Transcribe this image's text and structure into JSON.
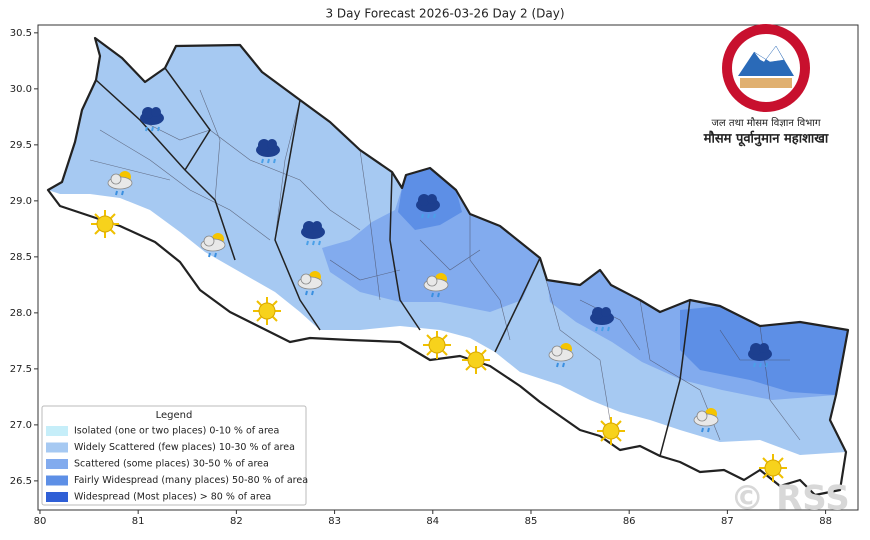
{
  "chart_data": {
    "type": "map",
    "title": "3 Day Forecast 2026-03-26 Day 2 (Day)",
    "xlim": [
      79.98,
      88.33
    ],
    "ylim": [
      26.24,
      30.57
    ],
    "xticks": [
      80,
      81,
      82,
      83,
      84,
      85,
      86,
      87,
      88
    ],
    "yticks": [
      30.5,
      {
        "value": 30.0,
        "label": "30.0"
      },
      29.5,
      {
        "value": 29.0,
        "label": "29.0"
      },
      28.5,
      {
        "value": 28.0,
        "label": "28.0"
      },
      27.5,
      {
        "value": 27.0,
        "label": "27.0"
      },
      26.5
    ],
    "legend": {
      "title": "Legend",
      "position": "lower left",
      "items": [
        {
          "label": "Isolated (one or two places)  0-10 % of area",
          "color": "#c6eef9"
        },
        {
          "label": "Widely Scattered (few places)  10-30 % of area",
          "color": "#a6c9f2"
        },
        {
          "label": "Scattered (some places)  30-50 % of area",
          "color": "#82abee"
        },
        {
          "label": "Fairly Widespread (many places)  50-80 % of area",
          "color": "#5d8fe6"
        },
        {
          "label": "Widespread (Most places) > 80 % of area",
          "color": "#2f5fd6"
        }
      ]
    },
    "logo": {
      "line1": "जल तथा मौसम विज्ञान विभाग",
      "line2": "मौसम पूर्वानुमान महाशाखा"
    },
    "watermark": "© RSS"
  }
}
